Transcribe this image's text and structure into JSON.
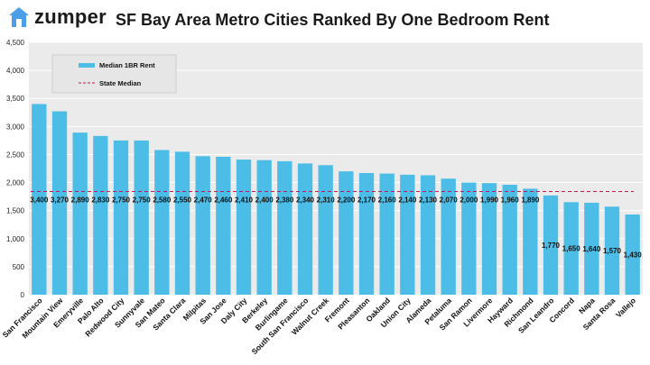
{
  "brand": {
    "name": "zumper",
    "color": "#4a9fe8",
    "icon": "house-icon"
  },
  "chart_data": {
    "type": "bar",
    "title": "SF Bay Area Metro Cities Ranked By One Bedroom Rent",
    "categories": [
      "San Francisco",
      "Mountain View",
      "Emeryville",
      "Palo Alto",
      "Redwood City",
      "Sunnyvale",
      "San Mateo",
      "Santa Clara",
      "Milpitas",
      "San Jose",
      "Daly City",
      "Berkeley",
      "Burlingame",
      "South San Francisco",
      "Walnut Creek",
      "Fremont",
      "Pleasanton",
      "Oakland",
      "Union City",
      "Alameda",
      "Petaluma",
      "San Ramon",
      "Livermore",
      "Hayward",
      "Richmond",
      "San Leandro",
      "Concord",
      "Napa",
      "Santa Rosa",
      "Vallejo"
    ],
    "series": [
      {
        "name": "Median 1BR Rent",
        "color": "#4bbde6",
        "values": [
          3400,
          3270,
          2890,
          2830,
          2750,
          2750,
          2580,
          2550,
          2470,
          2460,
          2410,
          2400,
          2380,
          2340,
          2310,
          2200,
          2170,
          2160,
          2140,
          2130,
          2070,
          2000,
          1990,
          1960,
          1890,
          1770,
          1650,
          1640,
          1570,
          1430
        ],
        "data_labels": [
          "3,400",
          "3,270",
          "2,890",
          "2,830",
          "2,750",
          "2,750",
          "2,580",
          "2,550",
          "2,470",
          "2,460",
          "2,410",
          "2,400",
          "2,380",
          "2,340",
          "2,310",
          "2,200",
          "2,170",
          "2,160",
          "2,140",
          "2,130",
          "2,070",
          "2,000",
          "1,990",
          "1,960",
          "1,890",
          "1,770",
          "1,650",
          "1,640",
          "1,570",
          "1,430"
        ]
      }
    ],
    "reference_line": {
      "name": "State Median",
      "value": 1840,
      "color": "#c0185a",
      "style": "dashed"
    },
    "ylim": [
      0,
      4500
    ],
    "yticks": [
      0,
      500,
      1000,
      1500,
      2000,
      2500,
      3000,
      3500,
      4000,
      4500
    ],
    "ytick_labels": [
      "0",
      "500",
      "1,000",
      "1,500",
      "2,000",
      "2,500",
      "3,000",
      "3,500",
      "4,000",
      "4,500"
    ],
    "xlabel": "",
    "ylabel": "",
    "grid": true,
    "legend": {
      "placement": "top-left",
      "entries": [
        "Median 1BR Rent",
        "State Median"
      ]
    },
    "background_color": "#ebebeb",
    "grid_color": "#ffffff"
  }
}
